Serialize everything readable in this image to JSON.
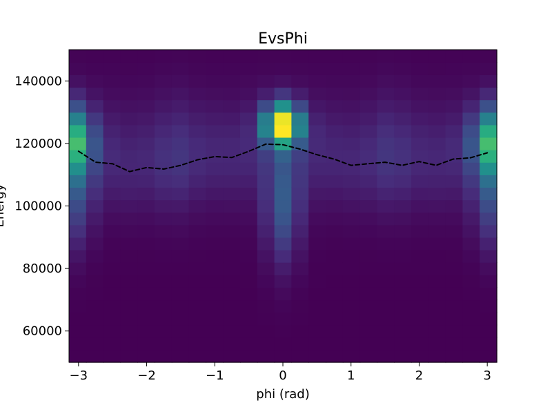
{
  "chart_data": {
    "type": "heatmap",
    "title": "EvsPhi",
    "xlabel": "phi (rad)",
    "ylabel": "Energy",
    "xlim": [
      -3.14,
      3.14
    ],
    "ylim": [
      50000,
      150000
    ],
    "x_ticks": [
      -3,
      -2,
      -1,
      0,
      1,
      2,
      3
    ],
    "x_tick_labels": [
      "−3",
      "−2",
      "−1",
      "0",
      "1",
      "2",
      "3"
    ],
    "y_ticks": [
      60000,
      80000,
      100000,
      120000,
      140000
    ],
    "y_tick_labels": [
      "60000",
      "80000",
      "100000",
      "120000",
      "140000"
    ],
    "nx": 25,
    "ny": 25,
    "intensity_max": 1.0,
    "colormap": "viridis",
    "colormap_stops": [
      "#440154",
      "#472d7b",
      "#3b528b",
      "#2c728e",
      "#21918c",
      "#28ae80",
      "#5ec962",
      "#addc30",
      "#fde725"
    ],
    "profile_line": {
      "style": "dashed",
      "color": "#000000",
      "x": [
        -3.0,
        -2.75,
        -2.5,
        -2.25,
        -2.0,
        -1.75,
        -1.5,
        -1.25,
        -1.0,
        -0.75,
        -0.5,
        -0.25,
        0.0,
        0.25,
        0.5,
        0.75,
        1.0,
        1.25,
        1.5,
        1.75,
        2.0,
        2.25,
        2.5,
        2.75,
        3.0
      ],
      "y": [
        117500,
        114000,
        113500,
        111000,
        112300,
        111800,
        113000,
        114800,
        115800,
        115500,
        117500,
        119800,
        119600,
        118200,
        116400,
        115000,
        113000,
        113500,
        114000,
        113000,
        114200,
        113000,
        115000,
        115400,
        117000
      ]
    }
  }
}
